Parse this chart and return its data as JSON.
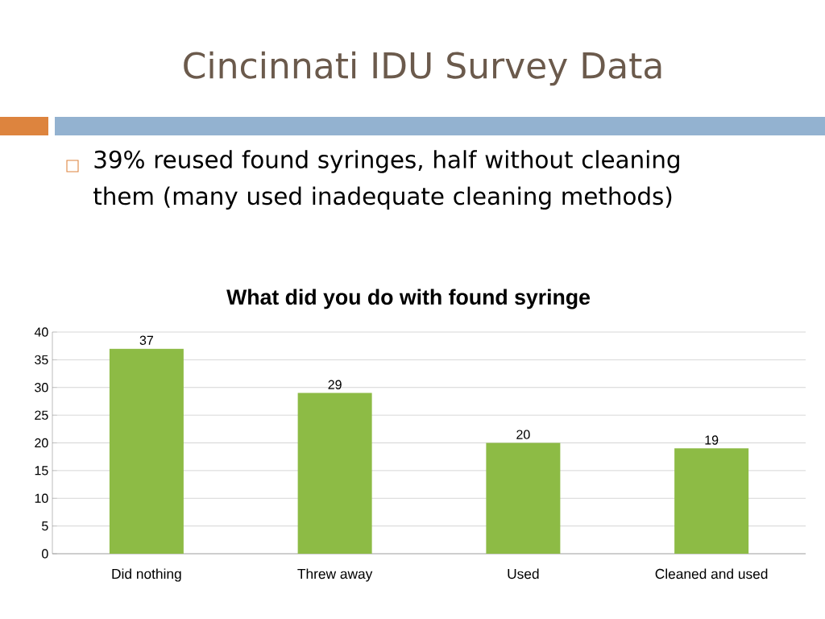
{
  "chart_data": {
    "type": "bar",
    "title": "What did you do with found syringe",
    "annotations": [
      "Cincinnati IDU Survey Data",
      "39% reused found syringes, half without cleaning them (many used inadequate cleaning methods)"
    ],
    "categories": [
      "Did nothing",
      "Threw away",
      "Used",
      "Cleaned and used"
    ],
    "values": [
      37,
      29,
      20,
      19
    ],
    "color": "#8dbb45",
    "ylim": [
      0,
      40
    ],
    "yticks": [
      0,
      5,
      10,
      15,
      20,
      25,
      30,
      35,
      40
    ],
    "grid": "y",
    "data_labels": true
  }
}
